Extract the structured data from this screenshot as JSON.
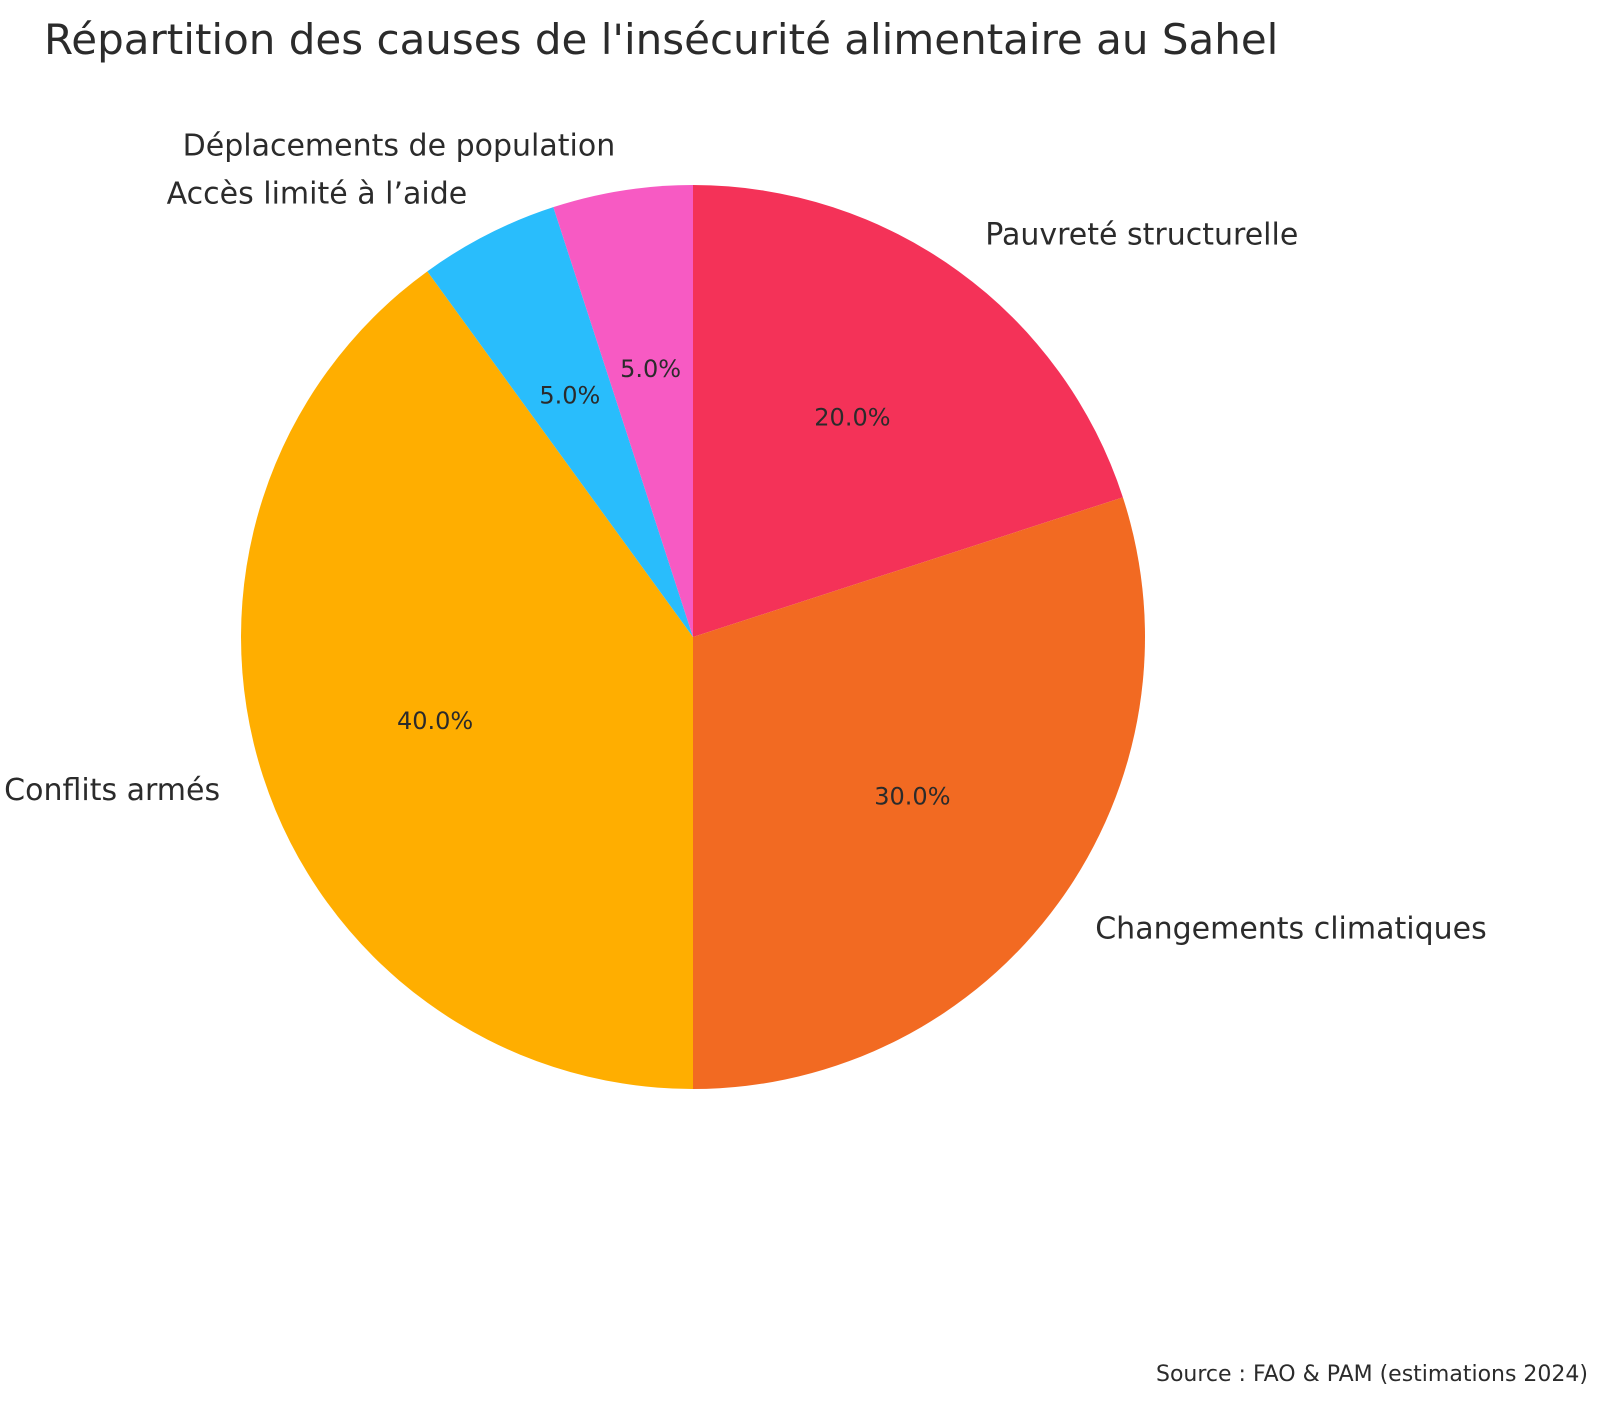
{
  "chart_data": {
    "type": "pie",
    "title": "Répartition des causes de l'insécurité alimentaire au Sahel",
    "source": "Source : FAO & PAM (estimations 2024)",
    "start_angle_deg": 90,
    "direction": "clockwise",
    "slices": [
      {
        "label": "Pauvreté structurelle",
        "value": 20,
        "pct_label": "20.0%",
        "color": "#F43258"
      },
      {
        "label": "Changements climatiques",
        "value": 30,
        "pct_label": "30.0%",
        "color": "#F26A22"
      },
      {
        "label": "Conflits armés",
        "value": 40,
        "pct_label": "40.0%",
        "color": "#FFAE00"
      },
      {
        "label": "Accès limité à l’aide",
        "value": 5,
        "pct_label": "5.0%",
        "color": "#29BDFC"
      },
      {
        "label": "Déplacements de population",
        "value": 5,
        "pct_label": "5.0%",
        "color": "#F75AC3"
      }
    ]
  }
}
